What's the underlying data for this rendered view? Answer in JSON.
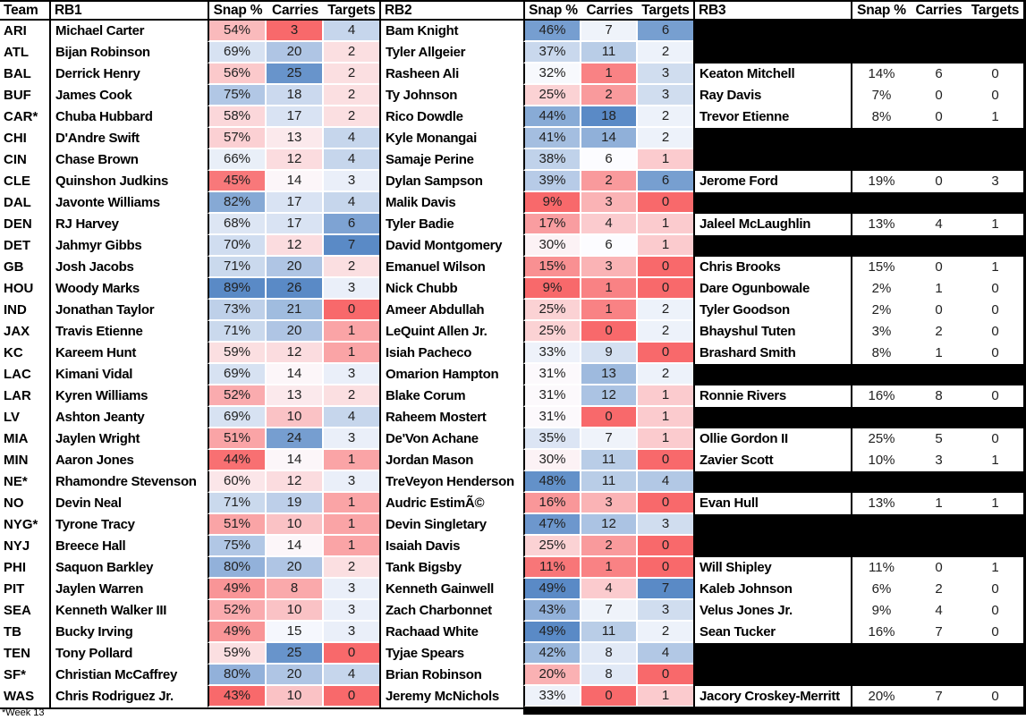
{
  "chart_data": {
    "type": "table",
    "columns": [
      "Team",
      "RB1",
      "Snap %",
      "Carries",
      "Targets",
      "RB2",
      "Snap %",
      "Carries",
      "Targets",
      "RB3",
      "Snap %",
      "Carries",
      "Targets"
    ],
    "footnote": "*Week 13",
    "heatmap": {
      "heat_columns": [
        "RB1 Snap %",
        "RB1 Carries",
        "RB1 Targets",
        "RB2 Snap %",
        "RB2 Carries",
        "RB2 Targets"
      ],
      "scale": "per-column min / median / max",
      "color_low": "#F8696B",
      "color_mid": "#FCFCFF",
      "color_high": "#5A8AC6",
      "blackout_color": "#000000",
      "grid_gap_color": "#FFFFFF",
      "border_color": "#000000"
    },
    "rows": [
      {
        "team": "ARI",
        "rb1": {
          "name": "Michael Carter",
          "snap": "54%",
          "carries": 3,
          "targets": 4
        },
        "rb2": {
          "name": "Bam Knight",
          "snap": "46%",
          "carries": 7,
          "targets": 6
        },
        "rb3": null
      },
      {
        "team": "ATL",
        "rb1": {
          "name": "Bijan Robinson",
          "snap": "69%",
          "carries": 20,
          "targets": 2
        },
        "rb2": {
          "name": "Tyler Allgeier",
          "snap": "37%",
          "carries": 11,
          "targets": 2
        },
        "rb3": null
      },
      {
        "team": "BAL",
        "rb1": {
          "name": "Derrick Henry",
          "snap": "56%",
          "carries": 25,
          "targets": 2
        },
        "rb2": {
          "name": "Rasheen Ali",
          "snap": "32%",
          "carries": 1,
          "targets": 3
        },
        "rb3": {
          "name": "Keaton Mitchell",
          "snap": "14%",
          "carries": 6,
          "targets": 0
        }
      },
      {
        "team": "BUF",
        "rb1": {
          "name": "James Cook",
          "snap": "75%",
          "carries": 18,
          "targets": 2
        },
        "rb2": {
          "name": "Ty Johnson",
          "snap": "25%",
          "carries": 2,
          "targets": 3
        },
        "rb3": {
          "name": "Ray Davis",
          "snap": "7%",
          "carries": 0,
          "targets": 0
        }
      },
      {
        "team": "CAR*",
        "rb1": {
          "name": "Chuba Hubbard",
          "snap": "58%",
          "carries": 17,
          "targets": 2
        },
        "rb2": {
          "name": "Rico Dowdle",
          "snap": "44%",
          "carries": 18,
          "targets": 2
        },
        "rb3": {
          "name": "Trevor Etienne",
          "snap": "8%",
          "carries": 0,
          "targets": 1
        }
      },
      {
        "team": "CHI",
        "rb1": {
          "name": "D'Andre Swift",
          "snap": "57%",
          "carries": 13,
          "targets": 4
        },
        "rb2": {
          "name": "Kyle Monangai",
          "snap": "41%",
          "carries": 14,
          "targets": 2
        },
        "rb3": null
      },
      {
        "team": "CIN",
        "rb1": {
          "name": "Chase Brown",
          "snap": "66%",
          "carries": 12,
          "targets": 4
        },
        "rb2": {
          "name": "Samaje Perine",
          "snap": "38%",
          "carries": 6,
          "targets": 1
        },
        "rb3": null
      },
      {
        "team": "CLE",
        "rb1": {
          "name": "Quinshon Judkins",
          "snap": "45%",
          "carries": 14,
          "targets": 3
        },
        "rb2": {
          "name": "Dylan Sampson",
          "snap": "39%",
          "carries": 2,
          "targets": 6
        },
        "rb3": {
          "name": "Jerome Ford",
          "snap": "19%",
          "carries": 0,
          "targets": 3
        }
      },
      {
        "team": "DAL",
        "rb1": {
          "name": "Javonte Williams",
          "snap": "82%",
          "carries": 17,
          "targets": 4
        },
        "rb2": {
          "name": "Malik Davis",
          "snap": "9%",
          "carries": 3,
          "targets": 0
        },
        "rb3": null
      },
      {
        "team": "DEN",
        "rb1": {
          "name": "RJ Harvey",
          "snap": "68%",
          "carries": 17,
          "targets": 6
        },
        "rb2": {
          "name": "Tyler Badie",
          "snap": "17%",
          "carries": 4,
          "targets": 1
        },
        "rb3": {
          "name": "Jaleel McLaughlin",
          "snap": "13%",
          "carries": 4,
          "targets": 1
        }
      },
      {
        "team": "DET",
        "rb1": {
          "name": "Jahmyr Gibbs",
          "snap": "70%",
          "carries": 12,
          "targets": 7
        },
        "rb2": {
          "name": "David Montgomery",
          "snap": "30%",
          "carries": 6,
          "targets": 1
        },
        "rb3": null
      },
      {
        "team": "GB",
        "rb1": {
          "name": "Josh Jacobs",
          "snap": "71%",
          "carries": 20,
          "targets": 2
        },
        "rb2": {
          "name": "Emanuel Wilson",
          "snap": "15%",
          "carries": 3,
          "targets": 0
        },
        "rb3": {
          "name": "Chris Brooks",
          "snap": "15%",
          "carries": 0,
          "targets": 1
        }
      },
      {
        "team": "HOU",
        "rb1": {
          "name": "Woody Marks",
          "snap": "89%",
          "carries": 26,
          "targets": 3
        },
        "rb2": {
          "name": "Nick Chubb",
          "snap": "9%",
          "carries": 1,
          "targets": 0
        },
        "rb3": {
          "name": "Dare Ogunbowale",
          "snap": "2%",
          "carries": 1,
          "targets": 0
        }
      },
      {
        "team": "IND",
        "rb1": {
          "name": "Jonathan Taylor",
          "snap": "73%",
          "carries": 21,
          "targets": 0
        },
        "rb2": {
          "name": "Ameer Abdullah",
          "snap": "25%",
          "carries": 1,
          "targets": 2
        },
        "rb3": {
          "name": "Tyler Goodson",
          "snap": "2%",
          "carries": 0,
          "targets": 0
        }
      },
      {
        "team": "JAX",
        "rb1": {
          "name": "Travis Etienne",
          "snap": "71%",
          "carries": 20,
          "targets": 1
        },
        "rb2": {
          "name": "LeQuint Allen Jr.",
          "snap": "25%",
          "carries": 0,
          "targets": 2
        },
        "rb3": {
          "name": "Bhayshul Tuten",
          "snap": "3%",
          "carries": 2,
          "targets": 0
        }
      },
      {
        "team": "KC",
        "rb1": {
          "name": "Kareem Hunt",
          "snap": "59%",
          "carries": 12,
          "targets": 1
        },
        "rb2": {
          "name": "Isiah Pacheco",
          "snap": "33%",
          "carries": 9,
          "targets": 0
        },
        "rb3": {
          "name": "Brashard Smith",
          "snap": "8%",
          "carries": 1,
          "targets": 0
        }
      },
      {
        "team": "LAC",
        "rb1": {
          "name": "Kimani Vidal",
          "snap": "69%",
          "carries": 14,
          "targets": 3
        },
        "rb2": {
          "name": "Omarion Hampton",
          "snap": "31%",
          "carries": 13,
          "targets": 2
        },
        "rb3": null
      },
      {
        "team": "LAR",
        "rb1": {
          "name": "Kyren Williams",
          "snap": "52%",
          "carries": 13,
          "targets": 2
        },
        "rb2": {
          "name": "Blake Corum",
          "snap": "31%",
          "carries": 12,
          "targets": 1
        },
        "rb3": {
          "name": "Ronnie Rivers",
          "snap": "16%",
          "carries": 8,
          "targets": 0
        }
      },
      {
        "team": "LV",
        "rb1": {
          "name": "Ashton Jeanty",
          "snap": "69%",
          "carries": 10,
          "targets": 4
        },
        "rb2": {
          "name": "Raheem Mostert",
          "snap": "31%",
          "carries": 0,
          "targets": 1
        },
        "rb3": null
      },
      {
        "team": "MIA",
        "rb1": {
          "name": "Jaylen Wright",
          "snap": "51%",
          "carries": 24,
          "targets": 3
        },
        "rb2": {
          "name": "De'Von Achane",
          "snap": "35%",
          "carries": 7,
          "targets": 1
        },
        "rb3": {
          "name": "Ollie Gordon II",
          "snap": "25%",
          "carries": 5,
          "targets": 0
        }
      },
      {
        "team": "MIN",
        "rb1": {
          "name": "Aaron Jones",
          "snap": "44%",
          "carries": 14,
          "targets": 1
        },
        "rb2": {
          "name": "Jordan Mason",
          "snap": "30%",
          "carries": 11,
          "targets": 0
        },
        "rb3": {
          "name": "Zavier Scott",
          "snap": "10%",
          "carries": 3,
          "targets": 1
        }
      },
      {
        "team": "NE*",
        "rb1": {
          "name": "Rhamondre Stevenson",
          "snap": "60%",
          "carries": 12,
          "targets": 3
        },
        "rb2": {
          "name": "TreVeyon Henderson",
          "snap": "48%",
          "carries": 11,
          "targets": 4
        },
        "rb3": null
      },
      {
        "team": "NO",
        "rb1": {
          "name": "Devin Neal",
          "snap": "71%",
          "carries": 19,
          "targets": 1
        },
        "rb2": {
          "name": "Audric EstimÃ©",
          "snap": "16%",
          "carries": 3,
          "targets": 0
        },
        "rb3": {
          "name": "Evan Hull",
          "snap": "13%",
          "carries": 1,
          "targets": 1
        }
      },
      {
        "team": "NYG*",
        "rb1": {
          "name": "Tyrone Tracy",
          "snap": "51%",
          "carries": 10,
          "targets": 1
        },
        "rb2": {
          "name": "Devin Singletary",
          "snap": "47%",
          "carries": 12,
          "targets": 3
        },
        "rb3": null
      },
      {
        "team": "NYJ",
        "rb1": {
          "name": "Breece Hall",
          "snap": "75%",
          "carries": 14,
          "targets": 1
        },
        "rb2": {
          "name": "Isaiah Davis",
          "snap": "25%",
          "carries": 2,
          "targets": 0
        },
        "rb3": null
      },
      {
        "team": "PHI",
        "rb1": {
          "name": "Saquon Barkley",
          "snap": "80%",
          "carries": 20,
          "targets": 2
        },
        "rb2": {
          "name": "Tank Bigsby",
          "snap": "11%",
          "carries": 1,
          "targets": 0
        },
        "rb3": {
          "name": "Will Shipley",
          "snap": "11%",
          "carries": 0,
          "targets": 1
        }
      },
      {
        "team": "PIT",
        "rb1": {
          "name": "Jaylen Warren",
          "snap": "49%",
          "carries": 8,
          "targets": 3
        },
        "rb2": {
          "name": "Kenneth Gainwell",
          "snap": "49%",
          "carries": 4,
          "targets": 7
        },
        "rb3": {
          "name": "Kaleb Johnson",
          "snap": "6%",
          "carries": 2,
          "targets": 0
        }
      },
      {
        "team": "SEA",
        "rb1": {
          "name": "Kenneth Walker III",
          "snap": "52%",
          "carries": 10,
          "targets": 3
        },
        "rb2": {
          "name": "Zach Charbonnet",
          "snap": "43%",
          "carries": 7,
          "targets": 3
        },
        "rb3": {
          "name": "Velus Jones Jr.",
          "snap": "9%",
          "carries": 4,
          "targets": 0
        }
      },
      {
        "team": "TB",
        "rb1": {
          "name": "Bucky Irving",
          "snap": "49%",
          "carries": 15,
          "targets": 3
        },
        "rb2": {
          "name": "Rachaad White",
          "snap": "49%",
          "carries": 11,
          "targets": 2
        },
        "rb3": {
          "name": "Sean Tucker",
          "snap": "16%",
          "carries": 7,
          "targets": 0
        }
      },
      {
        "team": "TEN",
        "rb1": {
          "name": "Tony Pollard",
          "snap": "59%",
          "carries": 25,
          "targets": 0
        },
        "rb2": {
          "name": "Tyjae Spears",
          "snap": "42%",
          "carries": 8,
          "targets": 4
        },
        "rb3": null
      },
      {
        "team": "SF*",
        "rb1": {
          "name": "Christian McCaffrey",
          "snap": "80%",
          "carries": 20,
          "targets": 4
        },
        "rb2": {
          "name": "Brian Robinson",
          "snap": "20%",
          "carries": 8,
          "targets": 0
        },
        "rb3": null
      },
      {
        "team": "WAS",
        "rb1": {
          "name": "Chris Rodriguez Jr.",
          "snap": "43%",
          "carries": 10,
          "targets": 0
        },
        "rb2": {
          "name": "Jeremy McNichols",
          "snap": "33%",
          "carries": 0,
          "targets": 1
        },
        "rb3": {
          "name": "Jacory Croskey-Merritt",
          "snap": "20%",
          "carries": 7,
          "targets": 0
        }
      }
    ]
  }
}
